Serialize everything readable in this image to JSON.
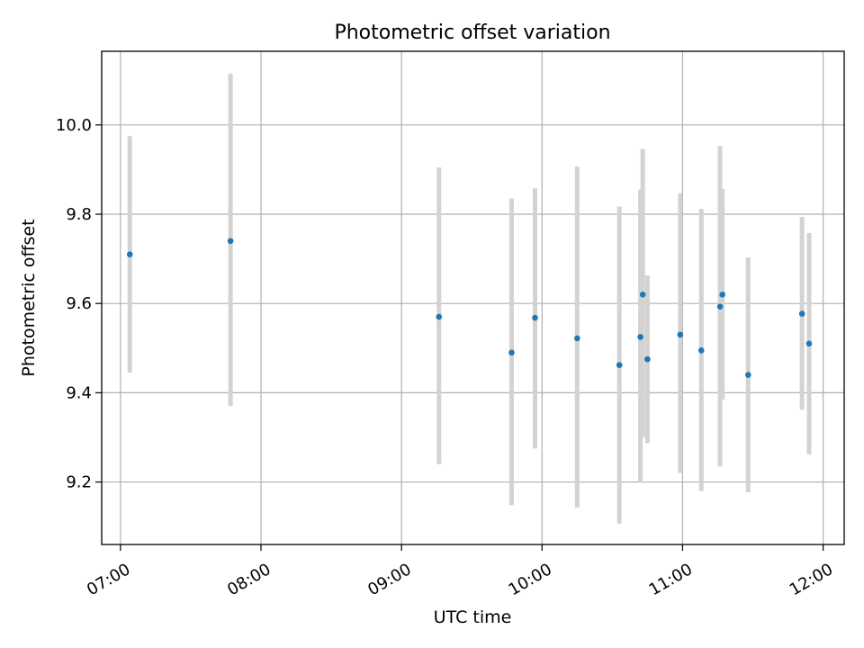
{
  "chart_data": {
    "type": "scatter",
    "title": "Photometric offset variation",
    "xlabel": "UTC time",
    "ylabel": "Photometric offset",
    "xlim": [
      "06:52",
      "12:09"
    ],
    "ylim": [
      9.06,
      10.165
    ],
    "x_ticks": [
      "07:00",
      "08:00",
      "09:00",
      "10:00",
      "11:00",
      "12:00"
    ],
    "y_ticks": [
      9.2,
      9.4,
      9.6,
      9.8,
      10.0
    ],
    "y_tick_labels": [
      "9.2",
      "9.4",
      "9.6",
      "9.8",
      "10.0"
    ],
    "grid": true,
    "marker_color": "#1f77b4",
    "errorbar_color": "#d3d3d3",
    "points": [
      {
        "x": "07:04",
        "y": 9.71,
        "ylow": 9.445,
        "yhigh": 9.975
      },
      {
        "x": "07:47",
        "y": 9.74,
        "ylow": 9.37,
        "yhigh": 10.115
      },
      {
        "x": "09:16",
        "y": 9.57,
        "ylow": 9.24,
        "yhigh": 9.905
      },
      {
        "x": "09:47",
        "y": 9.49,
        "ylow": 9.148,
        "yhigh": 9.835
      },
      {
        "x": "09:57",
        "y": 9.568,
        "ylow": 9.275,
        "yhigh": 9.858
      },
      {
        "x": "10:15",
        "y": 9.522,
        "ylow": 9.143,
        "yhigh": 9.907
      },
      {
        "x": "10:33",
        "y": 9.462,
        "ylow": 9.107,
        "yhigh": 9.817
      },
      {
        "x": "10:42",
        "y": 9.525,
        "ylow": 9.2,
        "yhigh": 9.855
      },
      {
        "x": "10:43",
        "y": 9.62,
        "ylow": 9.3,
        "yhigh": 9.946
      },
      {
        "x": "10:45",
        "y": 9.475,
        "ylow": 9.287,
        "yhigh": 9.663
      },
      {
        "x": "10:59",
        "y": 9.53,
        "ylow": 9.22,
        "yhigh": 9.847
      },
      {
        "x": "11:08",
        "y": 9.495,
        "ylow": 9.18,
        "yhigh": 9.812
      },
      {
        "x": "11:16",
        "y": 9.593,
        "ylow": 9.235,
        "yhigh": 9.953
      },
      {
        "x": "11:17",
        "y": 9.62,
        "ylow": 9.385,
        "yhigh": 9.857
      },
      {
        "x": "11:28",
        "y": 9.44,
        "ylow": 9.177,
        "yhigh": 9.703
      },
      {
        "x": "11:51",
        "y": 9.577,
        "ylow": 9.362,
        "yhigh": 9.794
      },
      {
        "x": "11:54",
        "y": 9.51,
        "ylow": 9.262,
        "yhigh": 9.758
      }
    ]
  }
}
